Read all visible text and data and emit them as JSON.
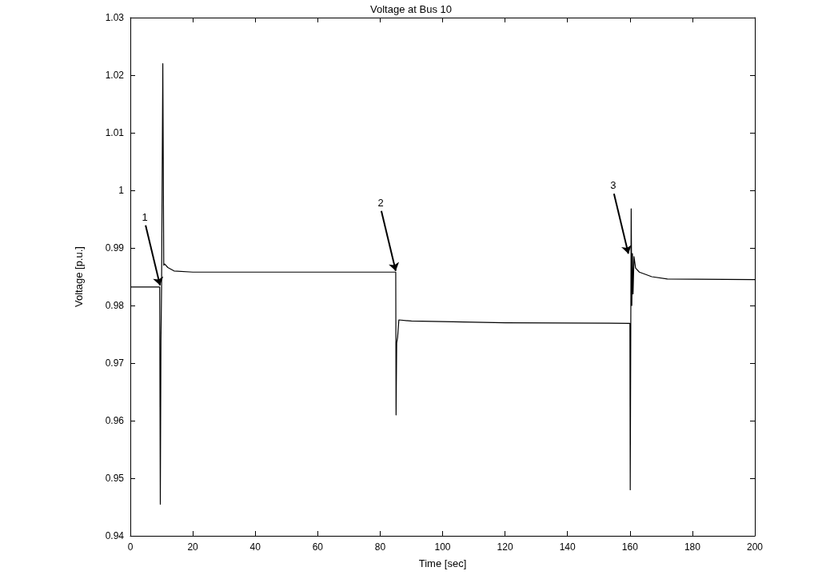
{
  "chart_data": {
    "type": "line",
    "title": "Voltage at Bus 10",
    "xlabel": "Time [sec]",
    "ylabel": "Voltage [p.u.]",
    "series": [
      {
        "color": "#000000",
        "x": [
          0,
          9.4,
          9.6,
          9.8,
          10,
          10.4,
          10.7,
          11,
          12,
          14,
          20,
          85,
          85.1,
          85.3,
          85.6,
          86,
          90,
          120,
          160,
          160.1,
          160.4,
          160.6,
          160.8,
          161,
          161.3,
          161.8,
          163,
          167,
          172,
          200
        ],
        "values": [
          0.9832,
          0.9832,
          0.9455,
          0.974,
          0.983,
          1.022,
          0.987,
          0.9872,
          0.9866,
          0.986,
          0.9858,
          0.9858,
          0.961,
          0.9735,
          0.9745,
          0.9775,
          0.9773,
          0.977,
          0.9769,
          0.948,
          0.9968,
          0.98,
          0.989,
          0.982,
          0.9885,
          0.9865,
          0.9858,
          0.985,
          0.9846,
          0.9845
        ]
      }
    ],
    "xlim": [
      0,
      200
    ],
    "xticks": [
      0,
      20,
      40,
      60,
      80,
      100,
      120,
      140,
      160,
      180,
      200
    ],
    "ylim": [
      0.94,
      1.03
    ],
    "yticks": [
      0.94,
      0.95,
      0.96,
      0.97,
      0.98,
      0.99,
      1,
      1.01,
      1.02,
      1.03
    ],
    "grid": false,
    "marker": "none",
    "line_style": "solid",
    "annotations": [
      {
        "text": "1",
        "x": 9.5,
        "y": 0.9835
      },
      {
        "text": "2",
        "x": 85,
        "y": 0.986
      },
      {
        "text": "3",
        "x": 159.5,
        "y": 0.989
      }
    ]
  }
}
